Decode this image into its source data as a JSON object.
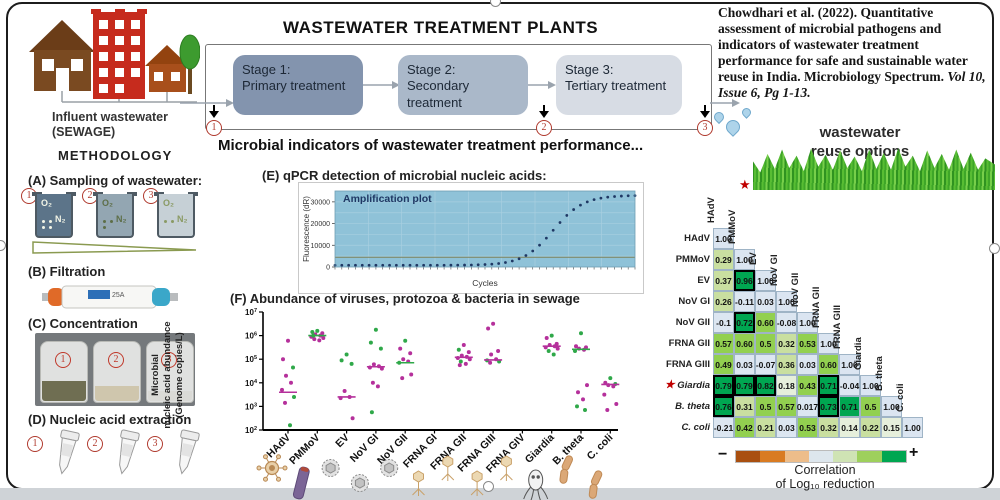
{
  "citation": {
    "plain": "Chowdhari et al. (2022). Quantitative assessment of microbial pathogens and indicators of wastewater treatment performance for safe and sustainable water reuse in India. Microbiology Spectrum. ",
    "italic": "Vol 10, Issue 6, Pg 1-13."
  },
  "header": {
    "title": "WASTEWATER TREATMENT PLANTS",
    "subtitle": "Microbial indicators of wastewater treatment performance...",
    "influent_line1": "Influent wastewater",
    "influent_line2": "(SEWAGE)",
    "reuse_line1": "wastewater",
    "reuse_line2": "reuse options",
    "stages": [
      {
        "name": "Stage 1:",
        "type": "Primary treatment",
        "color": "#8394ae",
        "marker": "1"
      },
      {
        "name": "Stage 2:",
        "type": "Secondary treatment",
        "color": "#aab8c9",
        "marker": "2"
      },
      {
        "name": "Stage 3:",
        "type": "Tertiary treatment",
        "color": "#d7dce4",
        "marker": "3"
      }
    ]
  },
  "methodology": {
    "heading": "METHODOLOGY",
    "step_a": "(A) Sampling of wastewater:",
    "step_b": "(B) Filtration",
    "step_c": "(C) Concentration",
    "step_d": "(D) Nucleic acid extraction",
    "step_e": "(E)  qPCR detection of microbial nucleic acids:",
    "step_f": "(F)  Abundance of viruses, protozoa & bacteria in sewage",
    "beakers": [
      {
        "num": "1",
        "o2": "O₂",
        "n2": "N₂",
        "fill": "#5c7489",
        "text": "#f2f4e6"
      },
      {
        "num": "2",
        "o2": "O₂",
        "n2": "N₂",
        "fill": "#93a6b2",
        "text": "#5d6e48"
      },
      {
        "num": "3",
        "o2": "O₂",
        "n2": "N₂",
        "fill": "#c6d0d6",
        "text": "#8a9a64"
      }
    ],
    "filter_label": "25A",
    "jars": [
      {
        "num": "1",
        "sediment": "#6f6e52",
        "sed_h": 20
      },
      {
        "num": "2",
        "sediment": "#cfc6ad",
        "sed_h": 15
      },
      {
        "num": "3",
        "sediment": "#dadad6",
        "sed_h": 10
      }
    ],
    "tubes": [
      {
        "num": "1"
      },
      {
        "num": "2"
      },
      {
        "num": "3"
      }
    ]
  },
  "chart_data": [
    {
      "id": "qpcr",
      "type": "line",
      "title": "Amplification plot",
      "xlabel": "Cycles",
      "ylabel": "Fluorescence (dR)",
      "yticks": [
        0,
        10000,
        20000,
        30000
      ],
      "ymax": 35000,
      "cycles": 45,
      "baseline": 800,
      "plateau": 33000,
      "ct_midpoint": 33,
      "slope": 2.2,
      "threshold": 4500,
      "bg": "#8fc2d8",
      "curve_color": "#1f3864",
      "threshold_color": "#7d815a"
    },
    {
      "id": "abundance",
      "type": "scatter",
      "ylabel_lines": [
        "Microbial",
        "nucleic acid abundance",
        "(Genome copies/L)"
      ],
      "ylim_exp": [
        2,
        7
      ],
      "point_colors": {
        "m": "#b5309b",
        "g": "#2fa849"
      },
      "categories": [
        "HAdV",
        "PMMoV",
        "EV",
        "NoV GI",
        "NoV GII",
        "FRNA GI",
        "FRNA GII",
        "FRNA GIII",
        "FRNA GIV",
        "Giardia",
        "B. theta",
        "C. coli"
      ],
      "icons": [
        "adeno",
        "rod",
        "ico",
        "ico",
        "ico",
        "phage",
        "phage",
        "phage",
        "phage",
        "giardia",
        "bact",
        "bact"
      ],
      "series": [
        {
          "cat": "HAdV",
          "median": 3.6,
          "median_color": "m",
          "points": [
            [
              5.78,
              "m"
            ],
            [
              5.0,
              "m"
            ],
            [
              4.65,
              "g"
            ],
            [
              4.3,
              "m"
            ],
            [
              4.0,
              "m"
            ],
            [
              3.7,
              "m"
            ],
            [
              3.4,
              "g"
            ],
            [
              3.15,
              "m"
            ],
            [
              2.2,
              "g"
            ]
          ]
        },
        {
          "cat": "PMMoV",
          "median": 6.0,
          "median_color": "g",
          "points": [
            [
              6.2,
              "g"
            ],
            [
              6.15,
              "g"
            ],
            [
              6.1,
              "m"
            ],
            [
              6.05,
              "m"
            ],
            [
              6.0,
              "m"
            ],
            [
              5.95,
              "m"
            ],
            [
              5.9,
              "m"
            ],
            [
              5.85,
              "m"
            ],
            [
              5.8,
              "m"
            ],
            [
              6.0,
              "g"
            ]
          ]
        },
        {
          "cat": "EV",
          "median": 3.4,
          "median_color": "m",
          "points": [
            [
              5.2,
              "g"
            ],
            [
              4.95,
              "g"
            ],
            [
              4.8,
              "g"
            ],
            [
              3.65,
              "m"
            ],
            [
              3.4,
              "m"
            ],
            [
              3.35,
              "m"
            ],
            [
              2.5,
              "m"
            ]
          ]
        },
        {
          "cat": "NoV GI",
          "median": 4.68,
          "median_color": "m",
          "points": [
            [
              6.25,
              "g"
            ],
            [
              5.7,
              "g"
            ],
            [
              5.45,
              "g"
            ],
            [
              4.78,
              "m"
            ],
            [
              4.7,
              "m"
            ],
            [
              4.65,
              "m"
            ],
            [
              4.6,
              "m"
            ],
            [
              4.0,
              "m"
            ],
            [
              3.85,
              "m"
            ],
            [
              2.75,
              "g"
            ]
          ]
        },
        {
          "cat": "NoV GII",
          "median": 4.85,
          "median_color": "g",
          "points": [
            [
              5.78,
              "g"
            ],
            [
              5.45,
              "m"
            ],
            [
              5.25,
              "m"
            ],
            [
              5.0,
              "m"
            ],
            [
              4.9,
              "m"
            ],
            [
              4.85,
              "g"
            ],
            [
              4.35,
              "m"
            ],
            [
              4.2,
              "m"
            ]
          ]
        },
        {
          "cat": "FRNA GI",
          "median": null,
          "median_color": "m",
          "points": []
        },
        {
          "cat": "FRNA GII",
          "median": 5.08,
          "median_color": "m",
          "points": [
            [
              5.6,
              "m"
            ],
            [
              5.4,
              "g"
            ],
            [
              5.3,
              "m"
            ],
            [
              5.15,
              "m"
            ],
            [
              5.1,
              "m"
            ],
            [
              5.05,
              "m"
            ],
            [
              5.0,
              "m"
            ],
            [
              4.9,
              "g"
            ],
            [
              4.8,
              "m"
            ],
            [
              4.75,
              "m"
            ]
          ]
        },
        {
          "cat": "FRNA GIII",
          "median": 4.97,
          "median_color": "m",
          "points": [
            [
              6.5,
              "m"
            ],
            [
              6.3,
              "m"
            ],
            [
              5.35,
              "m"
            ],
            [
              5.2,
              "m"
            ],
            [
              5.0,
              "m"
            ],
            [
              4.95,
              "g"
            ],
            [
              4.9,
              "g"
            ],
            [
              4.85,
              "m"
            ]
          ]
        },
        {
          "cat": "FRNA GIV",
          "median": null,
          "median_color": "m",
          "points": []
        },
        {
          "cat": "Giardia",
          "median": 5.55,
          "median_color": "m",
          "points": [
            [
              6.0,
              "g"
            ],
            [
              5.9,
              "m"
            ],
            [
              5.65,
              "m"
            ],
            [
              5.6,
              "m"
            ],
            [
              5.55,
              "m"
            ],
            [
              5.5,
              "m"
            ],
            [
              5.45,
              "m"
            ],
            [
              5.35,
              "g"
            ],
            [
              5.2,
              "g"
            ]
          ]
        },
        {
          "cat": "B. theta",
          "median": 5.42,
          "median_color": "g",
          "points": [
            [
              6.1,
              "g"
            ],
            [
              5.55,
              "m"
            ],
            [
              5.5,
              "m"
            ],
            [
              5.45,
              "m"
            ],
            [
              5.4,
              "m"
            ],
            [
              5.35,
              "g"
            ],
            [
              3.9,
              "m"
            ],
            [
              3.6,
              "m"
            ],
            [
              3.3,
              "m"
            ],
            [
              3.0,
              "g"
            ],
            [
              2.85,
              "g"
            ]
          ]
        },
        {
          "cat": "C. coli",
          "median": 3.93,
          "median_color": "m",
          "points": [
            [
              4.2,
              "g"
            ],
            [
              4.0,
              "m"
            ],
            [
              3.95,
              "g"
            ],
            [
              3.9,
              "m"
            ],
            [
              3.85,
              "m"
            ],
            [
              3.5,
              "m"
            ],
            [
              3.1,
              "m"
            ],
            [
              2.85,
              "m"
            ]
          ]
        }
      ]
    },
    {
      "id": "correlation",
      "type": "heatmap",
      "labels": [
        "HAdV",
        "PMMoV",
        "EV",
        "NoV GI",
        "NoV GII",
        "FRNA GII",
        "FRNA GIII",
        "Giardia",
        "B. theta",
        "C. coli"
      ],
      "italic_rows": [
        7,
        8,
        9
      ],
      "starred_row": 7,
      "starred_col": 1,
      "rows": [
        [
          "1.00"
        ],
        [
          "0.29",
          "1.00"
        ],
        [
          "0.37",
          "0.96",
          "1.00"
        ],
        [
          "0.26",
          "-0.11",
          "0.03",
          "1.00"
        ],
        [
          "-0.1",
          "0.72",
          "0.60",
          "-0.08",
          "1.00"
        ],
        [
          "0.57",
          "0.60",
          "0.5",
          "0.32",
          "0.53",
          "1.00"
        ],
        [
          "0.49",
          "0.03",
          "-0.07",
          "0.36",
          "0.03",
          "0.60",
          "1.00"
        ],
        [
          "0.79",
          "0.79",
          "0.82",
          "0.18",
          "0.43",
          "0.71",
          "-0.04",
          "1.00"
        ],
        [
          "0.76",
          "0.31",
          "0.5",
          "0.57",
          "0.017",
          "0.73",
          "0.71",
          "0.5",
          "1.00"
        ],
        [
          "-0.21",
          "0.42",
          "0.21",
          "0.03",
          "0.53",
          "0.32",
          "0.14",
          "0.22",
          "0.15",
          "1.00"
        ]
      ],
      "bold_cells": [
        [
          2,
          1
        ],
        [
          4,
          1
        ],
        [
          7,
          0
        ],
        [
          7,
          1
        ],
        [
          7,
          2
        ],
        [
          7,
          5
        ],
        [
          8,
          0
        ],
        [
          8,
          5
        ]
      ],
      "palette": {
        "strong": "#00a651",
        "medium": "#92d050",
        "light": "#c9dfa0",
        "pale": "#e6efdb",
        "neutral": "#dce6f1",
        "diagonal": "#dbe5f1"
      },
      "legend": {
        "colors": [
          "#a94f10",
          "#d97b22",
          "#edbd8a",
          "#dde6ed",
          "#cfe3b4",
          "#9ed05c",
          "#00a651"
        ],
        "minus": "−",
        "plus": "+",
        "caption_line1": "Correlation",
        "caption_line2": "of Log₁₀ reduction"
      }
    }
  ]
}
